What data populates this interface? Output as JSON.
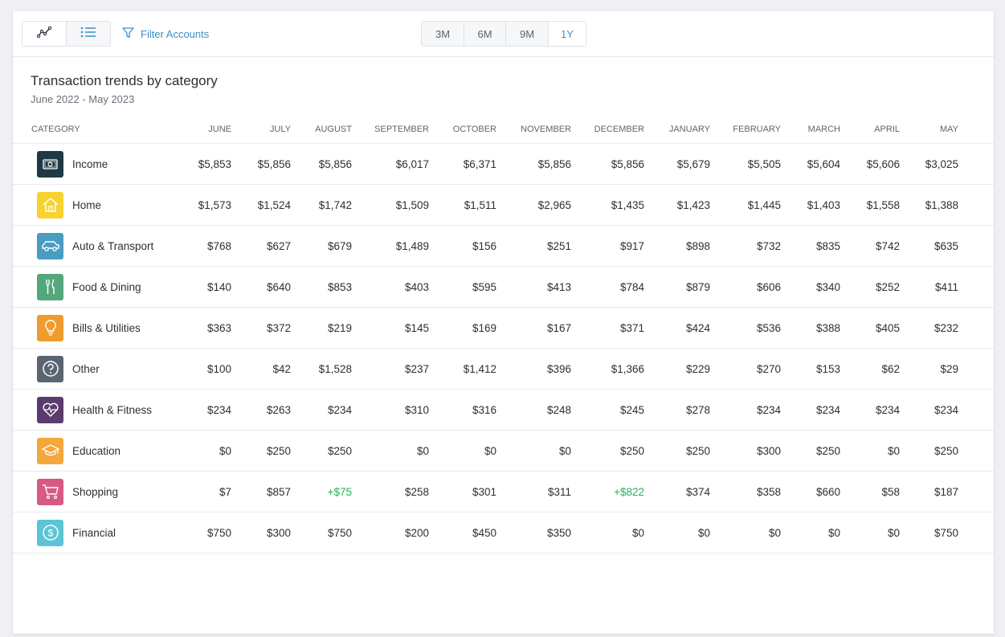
{
  "toolbar": {
    "filter_label": "Filter Accounts",
    "ranges": [
      "3M",
      "6M",
      "9M",
      "1Y"
    ],
    "active_range": "1Y"
  },
  "report": {
    "title": "Transaction trends by category",
    "subtitle": "June 2022 - May 2023"
  },
  "table": {
    "category_header": "CATEGORY",
    "months": [
      "JUNE",
      "JULY",
      "AUGUST",
      "SEPTEMBER",
      "OCTOBER",
      "NOVEMBER",
      "DECEMBER",
      "JANUARY",
      "FEBRUARY",
      "MARCH",
      "APRIL",
      "MAY"
    ],
    "rows": [
      {
        "category": "Income",
        "icon": "money-bill-icon",
        "color": "#1d3a44",
        "values": [
          "$5,853",
          "$5,856",
          "$5,856",
          "$6,017",
          "$6,371",
          "$5,856",
          "$5,856",
          "$5,679",
          "$5,505",
          "$5,604",
          "$5,606",
          "$3,025"
        ]
      },
      {
        "category": "Home",
        "icon": "house-icon",
        "color": "#f8d22e",
        "values": [
          "$1,573",
          "$1,524",
          "$1,742",
          "$1,509",
          "$1,511",
          "$2,965",
          "$1,435",
          "$1,423",
          "$1,445",
          "$1,403",
          "$1,558",
          "$1,388"
        ]
      },
      {
        "category": "Auto & Transport",
        "icon": "car-icon",
        "color": "#4a9cc0",
        "values": [
          "$768",
          "$627",
          "$679",
          "$1,489",
          "$156",
          "$251",
          "$917",
          "$898",
          "$732",
          "$835",
          "$742",
          "$635"
        ]
      },
      {
        "category": "Food & Dining",
        "icon": "fork-knife-icon",
        "color": "#54a77a",
        "values": [
          "$140",
          "$640",
          "$853",
          "$403",
          "$595",
          "$413",
          "$784",
          "$879",
          "$606",
          "$340",
          "$252",
          "$411"
        ]
      },
      {
        "category": "Bills & Utilities",
        "icon": "lightbulb-icon",
        "color": "#ef9c2e",
        "values": [
          "$363",
          "$372",
          "$219",
          "$145",
          "$169",
          "$167",
          "$371",
          "$424",
          "$536",
          "$388",
          "$405",
          "$232"
        ]
      },
      {
        "category": "Other",
        "icon": "question-icon",
        "color": "#5b6572",
        "values": [
          "$100",
          "$42",
          "$1,528",
          "$237",
          "$1,412",
          "$396",
          "$1,366",
          "$229",
          "$270",
          "$153",
          "$62",
          "$29"
        ]
      },
      {
        "category": "Health & Fitness",
        "icon": "heart-pulse-icon",
        "color": "#5a3c6e",
        "values": [
          "$234",
          "$263",
          "$234",
          "$310",
          "$316",
          "$248",
          "$245",
          "$278",
          "$234",
          "$234",
          "$234",
          "$234"
        ]
      },
      {
        "category": "Education",
        "icon": "graduation-cap-icon",
        "color": "#f4a73b",
        "values": [
          "$0",
          "$250",
          "$250",
          "$0",
          "$0",
          "$0",
          "$250",
          "$250",
          "$300",
          "$250",
          "$0",
          "$250"
        ]
      },
      {
        "category": "Shopping",
        "icon": "shopping-cart-icon",
        "color": "#d65a85",
        "values": [
          "$7",
          "$857",
          "+$75",
          "$258",
          "$301",
          "$311",
          "+$822",
          "$374",
          "$358",
          "$660",
          "$58",
          "$187"
        ]
      },
      {
        "category": "Financial",
        "icon": "dollar-circle-icon",
        "color": "#5cc4d6",
        "values": [
          "$750",
          "$300",
          "$750",
          "$200",
          "$450",
          "$350",
          "$0",
          "$0",
          "$0",
          "$0",
          "$0",
          "$750"
        ]
      }
    ]
  }
}
